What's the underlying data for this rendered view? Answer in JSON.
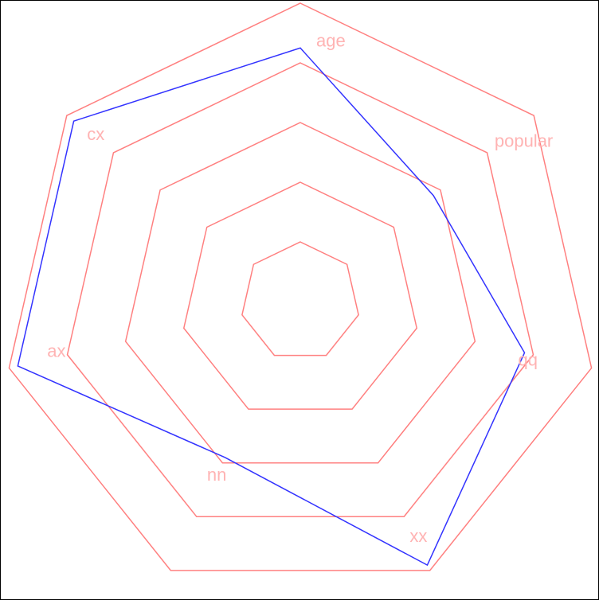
{
  "chart_data": {
    "type": "radar",
    "axes": [
      "age",
      "popular",
      "qq",
      "xx",
      "nn",
      "ax",
      "cx"
    ],
    "series": [
      {
        "values": [
          0.85,
          0.57,
          0.77,
          0.98,
          0.58,
          0.97,
          0.97
        ]
      }
    ],
    "rlim": [
      0,
      1
    ],
    "grid_levels": [
      0.2,
      0.4,
      0.6,
      0.8,
      1.0
    ],
    "grid": true,
    "colors": {
      "grid": "#ff8080",
      "labels": "#ffb3b3",
      "series": "#3333ff",
      "background": "#ffffff",
      "frame": "#000000"
    }
  }
}
